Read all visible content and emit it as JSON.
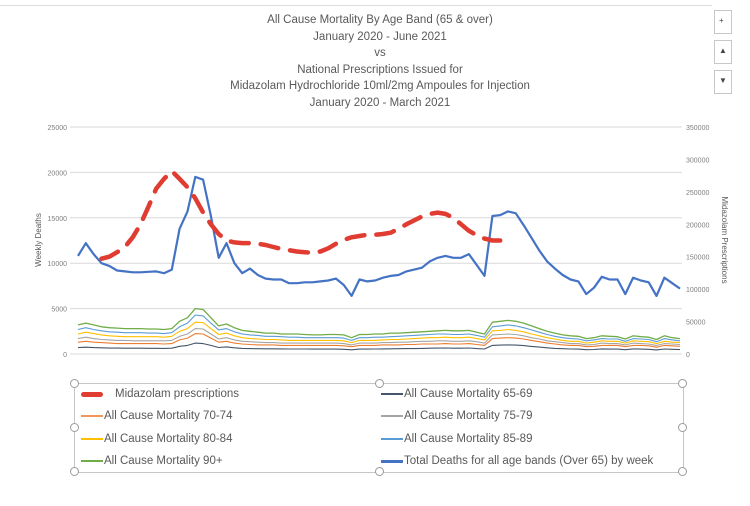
{
  "chart_data": {
    "type": "line",
    "title": [
      "All Cause Mortality By Age Band (65 & over)",
      "January 2020 - June 2021",
      "vs",
      "National Prescriptions Issued for",
      "Midazolam Hydrochloride 10ml/2mg Ampoules for Injection",
      "January 2020 - March 2021"
    ],
    "ylabel": "Weekly Deaths",
    "y2label": "Midazolam Prescriptions",
    "ylim": [
      0,
      25000
    ],
    "y2lim": [
      0,
      350000
    ],
    "yticks": [
      "0",
      "5000",
      "10000",
      "15000",
      "20000",
      "25000"
    ],
    "y2ticks": [
      "0",
      "50000",
      "100000",
      "150000",
      "200000",
      "250000",
      "300000",
      "350000"
    ],
    "grid": true,
    "legend_position": "bottom",
    "x_weeks": 78,
    "series": [
      {
        "name": "Total Deaths for all age bands (Over 65) by week",
        "axis": "left",
        "color": "#4472c4",
        "width": 2.2,
        "values": [
          10800,
          12200,
          11000,
          10000,
          9700,
          9200,
          9100,
          9000,
          9000,
          9050,
          9100,
          8900,
          9300,
          13800,
          15700,
          19500,
          19200,
          15200,
          10600,
          12200,
          10000,
          8900,
          9400,
          8700,
          8300,
          8200,
          8200,
          7800,
          7800,
          7900,
          7900,
          8000,
          8100,
          8300,
          7600,
          6400,
          8200,
          8000,
          8100,
          8400,
          8600,
          8700,
          9100,
          9300,
          9500,
          10200,
          10600,
          10800,
          10600,
          10600,
          11000,
          9800,
          8600,
          15200,
          15300,
          15700,
          15500,
          14200,
          12800,
          11400,
          10200,
          9400,
          8700,
          8200,
          8000,
          6600,
          7300,
          8500,
          8200,
          8200,
          6600,
          8400,
          8100,
          7900,
          6400,
          8400,
          7800,
          7200
        ]
      },
      {
        "name": "All Cause Mortality 90+",
        "axis": "left",
        "color": "#70ad47",
        "width": 1.3,
        "values": [
          3200,
          3400,
          3200,
          3000,
          2900,
          2850,
          2800,
          2800,
          2800,
          2750,
          2750,
          2700,
          2800,
          3600,
          4000,
          5000,
          4900,
          4000,
          3100,
          3300,
          2900,
          2600,
          2500,
          2400,
          2300,
          2300,
          2200,
          2200,
          2200,
          2150,
          2100,
          2100,
          2150,
          2150,
          2100,
          1800,
          2150,
          2150,
          2200,
          2200,
          2300,
          2300,
          2350,
          2400,
          2450,
          2500,
          2550,
          2600,
          2550,
          2550,
          2600,
          2400,
          2200,
          3500,
          3600,
          3700,
          3600,
          3400,
          3100,
          2800,
          2500,
          2300,
          2100,
          2000,
          1950,
          1700,
          1800,
          2000,
          1950,
          1900,
          1650,
          2000,
          1900,
          1850,
          1600,
          2000,
          1800,
          1700
        ]
      },
      {
        "name": "All Cause Mortality 85-89",
        "axis": "left",
        "color": "#5b9bd5",
        "width": 1.1,
        "values": [
          2700,
          2900,
          2700,
          2550,
          2450,
          2400,
          2350,
          2350,
          2350,
          2300,
          2300,
          2250,
          2350,
          3000,
          3400,
          4300,
          4200,
          3400,
          2650,
          2800,
          2450,
          2200,
          2100,
          2050,
          1950,
          1950,
          1900,
          1850,
          1850,
          1800,
          1800,
          1800,
          1800,
          1800,
          1750,
          1500,
          1800,
          1800,
          1850,
          1850,
          1900,
          1950,
          2000,
          2050,
          2100,
          2150,
          2200,
          2200,
          2150,
          2150,
          2200,
          2050,
          1850,
          3000,
          3100,
          3200,
          3100,
          2900,
          2650,
          2400,
          2150,
          1950,
          1800,
          1700,
          1650,
          1450,
          1550,
          1700,
          1650,
          1650,
          1400,
          1700,
          1650,
          1600,
          1350,
          1700,
          1550,
          1450
        ]
      },
      {
        "name": "All Cause Mortality 80-84",
        "axis": "left",
        "color": "#ffc000",
        "width": 1.1,
        "values": [
          2200,
          2400,
          2250,
          2100,
          2000,
          1950,
          1900,
          1900,
          1900,
          1900,
          1900,
          1850,
          1950,
          2500,
          2800,
          3500,
          3450,
          2800,
          2150,
          2300,
          2000,
          1800,
          1700,
          1650,
          1600,
          1600,
          1550,
          1500,
          1500,
          1500,
          1500,
          1500,
          1500,
          1500,
          1450,
          1250,
          1500,
          1500,
          1500,
          1550,
          1600,
          1600,
          1650,
          1700,
          1750,
          1800,
          1800,
          1850,
          1800,
          1800,
          1850,
          1700,
          1550,
          2550,
          2600,
          2700,
          2600,
          2450,
          2200,
          2000,
          1800,
          1650,
          1500,
          1400,
          1400,
          1200,
          1300,
          1450,
          1400,
          1400,
          1200,
          1450,
          1400,
          1350,
          1150,
          1400,
          1300,
          1250
        ]
      },
      {
        "name": "All Cause Mortality 75-79",
        "axis": "left",
        "color": "#a5a5a5",
        "width": 1.1,
        "values": [
          1700,
          1850,
          1700,
          1600,
          1550,
          1500,
          1500,
          1450,
          1450,
          1450,
          1450,
          1450,
          1500,
          1950,
          2200,
          2800,
          2750,
          2200,
          1650,
          1800,
          1550,
          1400,
          1350,
          1300,
          1250,
          1250,
          1200,
          1200,
          1200,
          1200,
          1200,
          1200,
          1200,
          1200,
          1150,
          1000,
          1200,
          1200,
          1200,
          1250,
          1250,
          1300,
          1300,
          1350,
          1400,
          1400,
          1450,
          1450,
          1400,
          1400,
          1450,
          1350,
          1200,
          2100,
          2150,
          2200,
          2150,
          2000,
          1800,
          1650,
          1450,
          1350,
          1250,
          1150,
          1150,
          1000,
          1050,
          1200,
          1150,
          1150,
          1000,
          1200,
          1150,
          1100,
          950,
          1150,
          1100,
          1050
        ]
      },
      {
        "name": "All Cause Mortality 70-74",
        "axis": "left",
        "color": "#ed7d31",
        "width": 1.1,
        "values": [
          1300,
          1400,
          1300,
          1250,
          1200,
          1150,
          1150,
          1150,
          1150,
          1150,
          1150,
          1100,
          1150,
          1550,
          1750,
          2250,
          2200,
          1750,
          1300,
          1400,
          1200,
          1100,
          1050,
          1000,
          1000,
          1000,
          950,
          950,
          950,
          950,
          950,
          950,
          950,
          950,
          900,
          800,
          950,
          950,
          950,
          1000,
          1000,
          1000,
          1050,
          1050,
          1100,
          1100,
          1100,
          1150,
          1100,
          1100,
          1150,
          1050,
          950,
          1700,
          1750,
          1800,
          1750,
          1650,
          1500,
          1350,
          1200,
          1100,
          1000,
          950,
          950,
          800,
          850,
          950,
          950,
          950,
          800,
          950,
          950,
          900,
          750,
          950,
          900,
          850
        ]
      },
      {
        "name": "All Cause Mortality 65-69",
        "axis": "left",
        "color": "#44546a",
        "width": 1.1,
        "values": [
          700,
          750,
          700,
          680,
          650,
          650,
          640,
          640,
          640,
          630,
          630,
          620,
          640,
          850,
          950,
          1200,
          1150,
          950,
          720,
          780,
          680,
          620,
          600,
          580,
          570,
          570,
          560,
          550,
          550,
          550,
          540,
          540,
          540,
          540,
          520,
          460,
          540,
          540,
          550,
          560,
          570,
          580,
          600,
          600,
          620,
          640,
          650,
          660,
          640,
          640,
          660,
          600,
          550,
          950,
          980,
          1000,
          980,
          920,
          840,
          760,
          680,
          620,
          580,
          550,
          540,
          470,
          500,
          560,
          540,
          540,
          470,
          560,
          540,
          520,
          450,
          550,
          520,
          490
        ]
      },
      {
        "name": "Midazolam prescriptions",
        "axis": "right",
        "color": "#e03c31",
        "width": 4.5,
        "dash": true,
        "values": [
          null,
          null,
          null,
          147000,
          150000,
          157000,
          165000,
          180000,
          200000,
          227000,
          255000,
          270000,
          282000,
          270000,
          257000,
          240000,
          218000,
          200000,
          185000,
          175000,
          172000,
          171000,
          171000,
          170000,
          168000,
          165000,
          162000,
          160000,
          158000,
          157000,
          156000,
          158000,
          163000,
          170000,
          176000,
          180000,
          182000,
          184000,
          184000,
          185000,
          187000,
          193000,
          200000,
          206000,
          212000,
          216000,
          218000,
          216000,
          210000,
          200000,
          190000,
          183000,
          178000,
          175000,
          175000,
          null,
          null,
          null,
          null,
          null,
          null,
          null,
          null,
          null,
          null,
          null,
          null,
          null,
          null,
          null,
          null,
          null,
          null,
          null,
          null,
          null,
          null,
          null
        ]
      }
    ]
  },
  "legend": {
    "items": [
      {
        "label": "Midazolam prescriptions",
        "color": "#e03c31",
        "thick": true
      },
      {
        "label": "All Cause Mortality 65-69",
        "color": "#44546a",
        "thick": false
      },
      {
        "label": "All Cause Mortality 70-74",
        "color": "#ed7d31",
        "thick": false
      },
      {
        "label": "All Cause Mortality 75-79",
        "color": "#a5a5a5",
        "thick": false
      },
      {
        "label": "All Cause Mortality 80-84",
        "color": "#ffc000",
        "thick": false
      },
      {
        "label": "All Cause Mortality 85-89",
        "color": "#5b9bd5",
        "thick": false
      },
      {
        "label": "All Cause Mortality 90+",
        "color": "#70ad47",
        "thick": false
      },
      {
        "label": "Total Deaths for all age bands (Over 65) by week",
        "color": "#4472c4",
        "thick": true
      }
    ]
  },
  "side_buttons": [
    {
      "icon": "plus-icon",
      "glyph": "+"
    },
    {
      "icon": "brush-icon",
      "glyph": "▲"
    },
    {
      "icon": "filter-icon",
      "glyph": "▼"
    }
  ]
}
